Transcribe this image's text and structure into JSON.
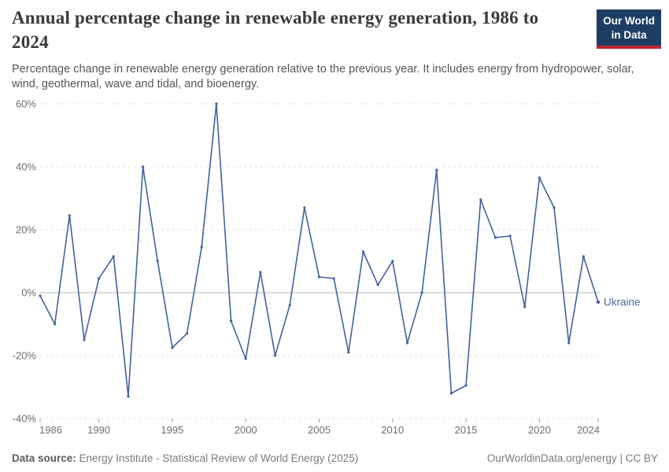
{
  "header": {
    "title": "Annual percentage change in renewable energy generation, 1986 to 2024",
    "subtitle": "Percentage change in renewable energy generation relative to the previous year. It includes energy from hydropower, solar, wind, geothermal, wave and tidal, and bioenergy.",
    "logo": {
      "line1": "Our World",
      "line2": "in Data",
      "bg_color": "#1d3d63",
      "stripe_color": "#c1242e"
    }
  },
  "chart_data": {
    "type": "line",
    "title": "Annual percentage change in renewable energy generation, 1986 to 2024",
    "xlabel": "",
    "ylabel": "",
    "unit": "%",
    "x_range": [
      1986,
      2024
    ],
    "ylim": [
      -40,
      60
    ],
    "yticks": [
      -40,
      -20,
      0,
      20,
      40,
      60
    ],
    "xticks": [
      1986,
      1990,
      1995,
      2000,
      2005,
      2010,
      2015,
      2020,
      2024
    ],
    "grid": "horizontal-dashed",
    "legend_position": "end-of-line-label",
    "colors": {
      "line": "#44619e",
      "entity_label": "#4c6a9c",
      "gridline": "#e2e2e2",
      "zero_line": "#b5b5b5",
      "tick_text": "#6e6e6e"
    },
    "series": [
      {
        "name": "Ukraine",
        "x": [
          1986,
          1987,
          1988,
          1989,
          1990,
          1991,
          1992,
          1993,
          1994,
          1995,
          1996,
          1997,
          1998,
          1999,
          2000,
          2001,
          2002,
          2003,
          2004,
          2005,
          2006,
          2007,
          2008,
          2009,
          2010,
          2011,
          2012,
          2013,
          2014,
          2015,
          2016,
          2017,
          2018,
          2019,
          2020,
          2021,
          2022,
          2023,
          2024
        ],
        "values": [
          -1,
          -10,
          24.5,
          -15,
          4.5,
          11.5,
          -33,
          40,
          10,
          -17.5,
          -13,
          14.5,
          60,
          -9,
          -21,
          6.5,
          -20,
          -4,
          27,
          5,
          4.5,
          -19,
          13,
          2.5,
          10,
          -16,
          0,
          39,
          -32,
          -29.5,
          29.5,
          17.5,
          18,
          -4.5,
          36.5,
          27,
          -16,
          11.5,
          -3
        ]
      }
    ]
  },
  "footer": {
    "datasource_label": "Data source:",
    "datasource_value": "Energy Institute - Statistical Review of World Energy (2025)",
    "credit": "OurWorldinData.org/energy | CC BY"
  }
}
